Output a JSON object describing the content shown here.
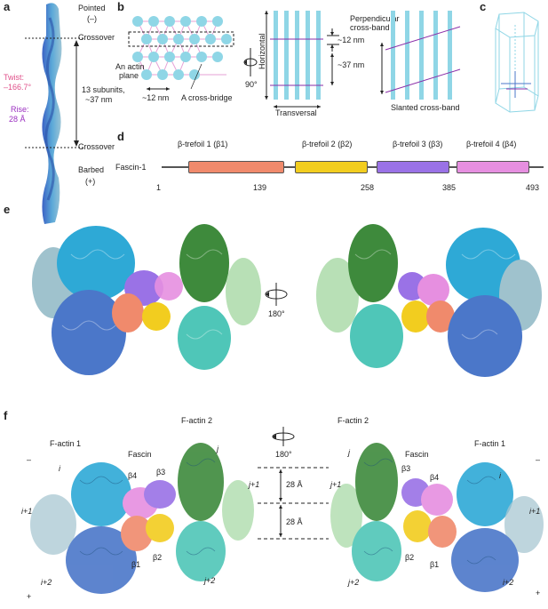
{
  "panels": {
    "a": {
      "label": "a",
      "pointed": "Pointed",
      "pointed_sign": "(–)",
      "crossover_top": "Crossover",
      "twist": "Twist:",
      "twist_value": "–166.7°",
      "subunits_line1": "13 subunits,",
      "subunits_line2": "~37 nm",
      "rise": "Rise:",
      "rise_value": "28 Å",
      "crossover_bottom": "Crossover",
      "barbed": "Barbed",
      "barbed_sign": "(+)"
    },
    "b": {
      "label": "b",
      "actin_plane_1": "An actin",
      "actin_plane_2": "plane",
      "spacing_12": "~12 nm",
      "cross_bridge": "A cross-bridge",
      "rotation": "90°",
      "horizontal": "Horizontal",
      "transversal": "Transversal",
      "perpendicular_1": "Perpendicular",
      "perpendicular_2": "cross-band",
      "dim_12": "~12 nm",
      "dim_37": "~37 nm",
      "slanted": "Slanted cross-band"
    },
    "c": {
      "label": "c"
    },
    "d": {
      "label": "d",
      "protein": "Fascin-1",
      "domains": [
        {
          "name": "β-trefoil 1 (β1)",
          "color": "#f08a6c"
        },
        {
          "name": "β-trefoil 2 (β2)",
          "color": "#f2cd1f"
        },
        {
          "name": "β-trefoil 3 (β3)",
          "color": "#9a72e6"
        },
        {
          "name": "β-trefoil 4 (β4)",
          "color": "#e68fe0"
        }
      ],
      "positions": [
        "1",
        "139",
        "258",
        "385",
        "493"
      ]
    },
    "e": {
      "label": "e",
      "rotation": "180°"
    },
    "f": {
      "label": "f",
      "factin1_left": "F-actin 1",
      "fascin_left": "Fascin",
      "factin2_left": "F-actin 2",
      "rotation": "180°",
      "factin2_right": "F-actin 2",
      "fascin_right": "Fascin",
      "factin1_right": "F-actin 1",
      "minus": "–",
      "plus": "+",
      "rise1": "28 Å",
      "rise2": "28 Å",
      "i": "i",
      "i1": "i+1",
      "i2": "i+2",
      "j": "j",
      "j1": "j+1",
      "j2": "j+2",
      "b1": "β1",
      "b2": "β2",
      "b3": "β3",
      "b4": "β4"
    }
  },
  "colors": {
    "actin_i": "#2ea9d6",
    "actin_i1": "#9fc2cd",
    "actin_i2": "#4b77c9",
    "actin_j": "#3e8a3c",
    "actin_j1": "#b8e0b6",
    "actin_j2": "#4fc6b8",
    "beta1": "#f08a6c",
    "beta2": "#f2cd1f",
    "beta3": "#9a72e6",
    "beta4": "#e68fe0",
    "lattice": "#7fd0e0",
    "crossband": "#8a2ea8",
    "twist_label": "#e0508a",
    "rise_label": "#9b2fc0"
  }
}
